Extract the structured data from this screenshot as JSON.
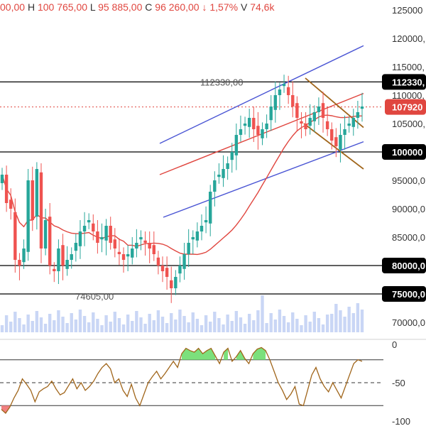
{
  "header": {
    "o_value": "00,00",
    "h_label": "H",
    "h_value": "100 765,00",
    "l_label": "L",
    "l_value": "95 885,00",
    "c_label": "C",
    "c_value": "96 260,00",
    "change": "↓ 1,57%",
    "v_label": "V",
    "v_value": "74,6k"
  },
  "colors": {
    "bull": "#26a69a",
    "bear": "#ef5350",
    "ma": "#e0463f",
    "channel_blue": "#4a55d4",
    "channel_red": "#e0463f",
    "wedge": "#a0651a",
    "level": "#000000",
    "volume": "#c9d6f5",
    "rsi_line": "#a0651a",
    "rsi_fill_high": "#7ce07c",
    "rsi_fill_low": "#f08080",
    "price_badge": "#e0463f"
  },
  "chart_data": [
    {
      "type": "candlestick",
      "title": "",
      "y_axis_ticks": [
        "125000",
        "120000,",
        "115000,",
        "110000,",
        "105000,",
        "95000,0",
        "90000,0",
        "85000,0",
        "70000,0"
      ],
      "ylim": [
        68000,
        126000
      ],
      "annotations": [
        {
          "text": "112330,00",
          "value": 112330
        },
        {
          "text": "74605,00",
          "value": 74605
        }
      ],
      "horizontal_levels": [
        {
          "label": "112330,",
          "value": 112330
        },
        {
          "label": "100000",
          "value": 100000
        },
        {
          "label": "80000,0",
          "value": 80000
        },
        {
          "label": "75000,0",
          "value": 75000
        }
      ],
      "current_price": {
        "label": "107920",
        "value": 107920
      },
      "series": [
        {
          "name": "",
          "candles_close": [
            96000,
            91000,
            90000,
            81000,
            80000,
            83000,
            95000,
            88000,
            97000,
            83000,
            88000,
            80000,
            79000,
            83000,
            80000,
            81000,
            82000,
            84000,
            86000,
            87000,
            88000,
            86000,
            84000,
            85000,
            87000,
            84000,
            83000,
            82000,
            81000,
            82000,
            83000,
            84000,
            85000,
            84000,
            83000,
            82000,
            80000,
            79000,
            78000,
            76000,
            78000,
            80000,
            82000,
            84000,
            85000,
            86000,
            87000,
            88000,
            93000,
            95000,
            96000,
            97000,
            98000,
            100000,
            103000,
            104000,
            105000,
            106000,
            104000,
            103000,
            104000,
            105000,
            108000,
            110000,
            111000,
            112000,
            110000,
            108000,
            106000,
            105000,
            104000,
            106000,
            107000,
            108000,
            106000,
            104000,
            102000,
            101000,
            103000,
            104000,
            105000,
            106000,
            107000,
            108000
          ]
        },
        {
          "name": "",
          "type": "line",
          "note": "moving average"
        }
      ]
    },
    {
      "type": "line",
      "title": "",
      "y_axis_ticks": [
        "0",
        "-50",
        "-100"
      ],
      "ylim": [
        -103,
        3
      ],
      "reference_lines": [
        -20,
        -50,
        -80
      ],
      "series": [
        {
          "name": "",
          "values": [
            -85,
            -90,
            -82,
            -70,
            -60,
            -45,
            -52,
            -60,
            -75,
            -62,
            -58,
            -55,
            -48,
            -58,
            -66,
            -63,
            -54,
            -45,
            -58,
            -50,
            -60,
            -55,
            -48,
            -38,
            -30,
            -25,
            -32,
            -50,
            -45,
            -60,
            -68,
            -52,
            -70,
            -80,
            -65,
            -50,
            -42,
            -35,
            -45,
            -38,
            -30,
            -22,
            -30,
            -12,
            -5,
            -8,
            -10,
            -5,
            -12,
            -8,
            -5,
            -15,
            -25,
            -10,
            -5,
            -22,
            -16,
            -8,
            -18,
            -25,
            -12,
            -6,
            -4,
            -8,
            -20,
            -35,
            -50,
            -60,
            -72,
            -65,
            -55,
            -78,
            -80,
            -60,
            -40,
            -30,
            -45,
            -55,
            -62,
            -50,
            -60,
            -70,
            -55,
            -40,
            -25,
            -20,
            -22
          ]
        }
      ]
    }
  ]
}
